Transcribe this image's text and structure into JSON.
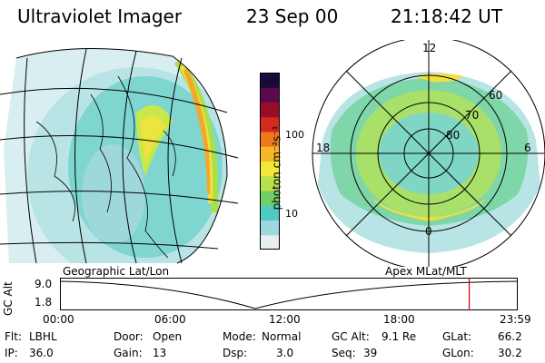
{
  "header": {
    "instrument": "Ultraviolet Imager",
    "date": "23 Sep 00",
    "time": "21:18:42 UT"
  },
  "colorbar": {
    "unit_label": "photon cm⁻²s⁻¹",
    "ticks": [
      "100",
      "10"
    ],
    "colors": [
      "#e6eef0",
      "#9fd8dc",
      "#4fc9c4",
      "#6fd06a",
      "#b8e04a",
      "#f2e83a",
      "#f6b82a",
      "#ee7a1e",
      "#d42a1e",
      "#9a0d2a",
      "#5a0a4a",
      "#1a0a3a"
    ]
  },
  "left_map": {
    "projection_label": "Geographic Lat/Lon"
  },
  "right_map": {
    "projection_label": "Apex MLat/MLT",
    "mlt_labels": {
      "top": "12",
      "left": "18",
      "right": "6",
      "bottom": "0"
    },
    "lat_labels": [
      "60",
      "70",
      "80"
    ]
  },
  "altitude_plot": {
    "axis_title": "GC Alt",
    "y_ticks": [
      "9.0",
      "1.8"
    ],
    "x_ticks": [
      "00:00",
      "06:00",
      "12:00",
      "18:00",
      "23:59"
    ],
    "current_time_fraction": 0.894,
    "marker_color": "#cc0000"
  },
  "info": {
    "flt_label": "Flt:",
    "flt_value": "LBHL",
    "ip_label": "IP:",
    "ip_value": "36.0",
    "door_label": "Door:",
    "door_value": "Open",
    "gain_label": "Gain:",
    "gain_value": "13",
    "mode_label": "Mode:",
    "mode_value": "Normal",
    "dsp_label": "Dsp:",
    "dsp_value": "3.0",
    "gcalt_label": "GC Alt:",
    "gcalt_value": "9.1 Re",
    "seq_label": "Seq:",
    "seq_value": "39",
    "glat_label": "GLat:",
    "glat_value": "66.2",
    "glon_label": "GLon:",
    "glon_value": "30.2"
  }
}
